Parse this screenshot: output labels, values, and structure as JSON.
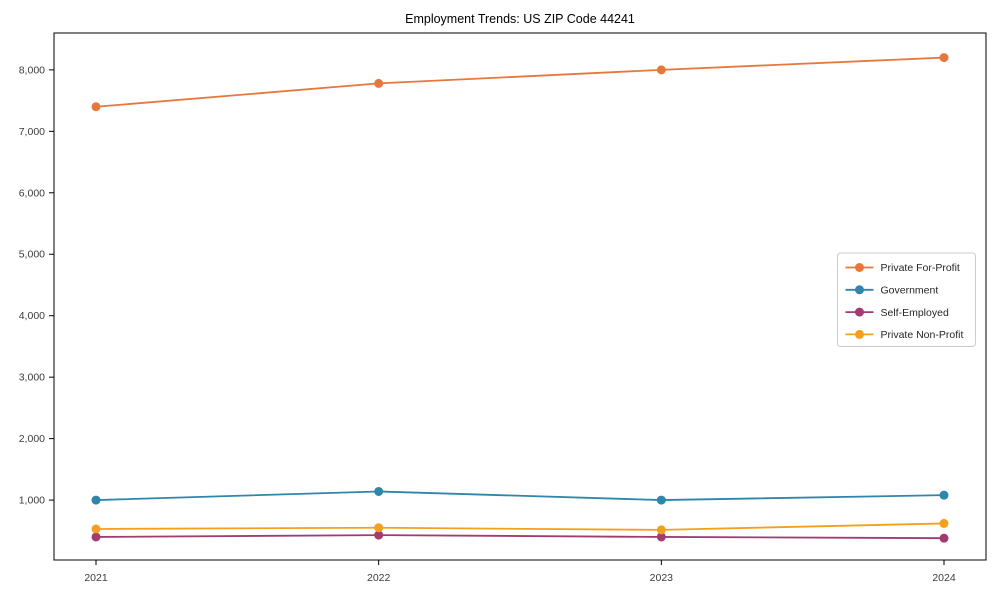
{
  "chart_data": {
    "type": "line",
    "title": "Employment Trends: US ZIP Code 44241",
    "categories": [
      "2021",
      "2022",
      "2023",
      "2024"
    ],
    "series": [
      {
        "name": "Private For-Profit",
        "color": "#E8773D",
        "values": [
          7400,
          7780,
          8000,
          8200
        ]
      },
      {
        "name": "Government",
        "color": "#2E86AB",
        "values": [
          1000,
          1140,
          1000,
          1080
        ]
      },
      {
        "name": "Self-Employed",
        "color": "#A23B72",
        "values": [
          400,
          430,
          400,
          380
        ]
      },
      {
        "name": "Private Non-Profit",
        "color": "#F5A01D",
        "values": [
          530,
          550,
          515,
          620
        ]
      }
    ],
    "y_ticks": [
      1000,
      2000,
      3000,
      4000,
      5000,
      6000,
      7000,
      8000
    ],
    "y_tick_labels": [
      "1,000",
      "2,000",
      "3,000",
      "4,000",
      "5,000",
      "6,000",
      "7,000",
      "8,000"
    ],
    "ylim": [
      25,
      8600
    ],
    "xlabel": "",
    "ylabel": "",
    "grid": false,
    "legend_position": "center right",
    "axis_color": "#000000",
    "legend_border_color": "#cccccc"
  }
}
